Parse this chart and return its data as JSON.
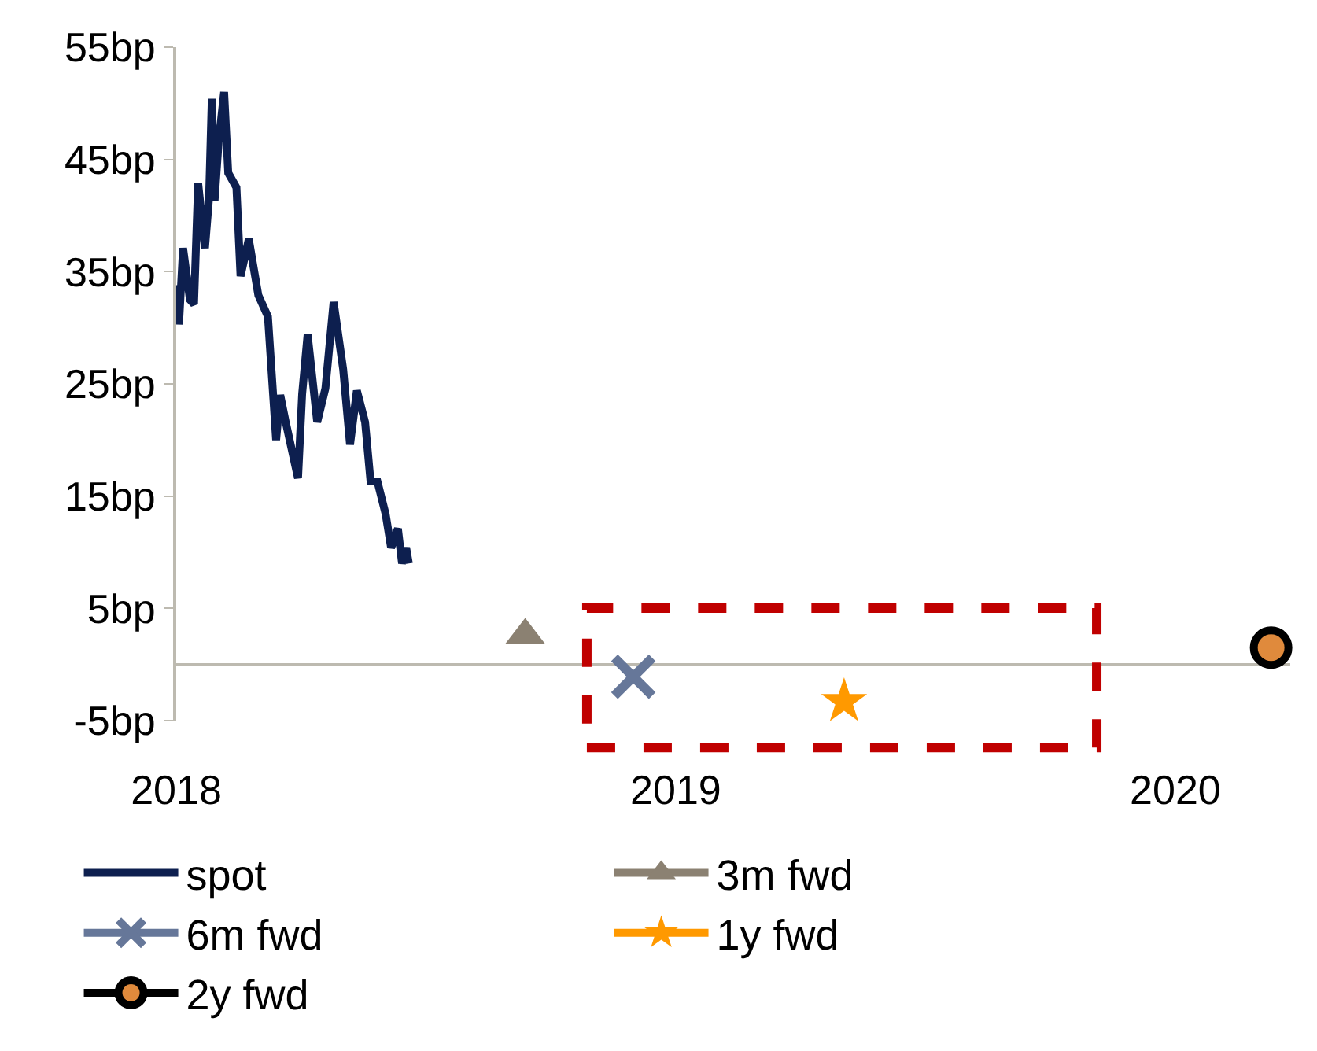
{
  "chart_data": {
    "type": "line",
    "xlim": [
      "2018-01-01",
      "2020-03-25"
    ],
    "xticks": [
      "2018",
      "2019",
      "2020"
    ],
    "ylim": [
      -5,
      55
    ],
    "yticks": [
      {
        "value": -5,
        "label": "-5bp"
      },
      {
        "value": 5,
        "label": "5bp"
      },
      {
        "value": 15,
        "label": "15bp"
      },
      {
        "value": 25,
        "label": "25bp"
      },
      {
        "value": 35,
        "label": "35bp"
      },
      {
        "value": 45,
        "label": "45bp"
      },
      {
        "value": 55,
        "label": "55bp"
      }
    ],
    "grid": false,
    "legend": "bottom",
    "series": [
      {
        "name": "spot",
        "color": "#0d1f4f",
        "marker": "none",
        "x": [
          "2018-01-02",
          "2018-01-03",
          "2018-01-06",
          "2018-01-11",
          "2018-01-14",
          "2018-01-17",
          "2018-01-22",
          "2018-01-25",
          "2018-01-27",
          "2018-01-29",
          "2018-02-01",
          "2018-02-05",
          "2018-02-08",
          "2018-02-14",
          "2018-02-17",
          "2018-02-23",
          "2018-03-02",
          "2018-03-09",
          "2018-03-15",
          "2018-03-18",
          "2018-03-22",
          "2018-03-31",
          "2018-04-03",
          "2018-04-07",
          "2018-04-14",
          "2018-04-20",
          "2018-04-26",
          "2018-05-03",
          "2018-05-08",
          "2018-05-13",
          "2018-05-19",
          "2018-05-23",
          "2018-05-28",
          "2018-06-03",
          "2018-06-07",
          "2018-06-12",
          "2018-06-15",
          "2018-06-18",
          "2018-06-20"
        ],
        "values": [
          33.8,
          30.3,
          37.1,
          32.5,
          32.1,
          42.9,
          37.1,
          41.6,
          50.4,
          41.3,
          46.6,
          51,
          43.8,
          42.5,
          34.6,
          37.9,
          32.9,
          31,
          20,
          24,
          21.6,
          16.6,
          24.1,
          29.4,
          21.6,
          24.6,
          32.3,
          26.3,
          19.6,
          24.4,
          21.6,
          16.3,
          16.3,
          13.4,
          10.4,
          12.1,
          9,
          10.4,
          9
        ]
      },
      {
        "name": "3m fwd",
        "color": "#8b8172",
        "marker": "triangle",
        "x": [
          "2018-09-13"
        ],
        "values": [
          2.6
        ]
      },
      {
        "name": "6m fwd",
        "color": "#667799",
        "marker": "cross",
        "x": [
          "2018-12-01"
        ],
        "values": [
          -1.1
        ]
      },
      {
        "name": "1y fwd",
        "color": "#ff9900",
        "marker": "star",
        "x": [
          "2019-05-04"
        ],
        "values": [
          -3.3
        ]
      },
      {
        "name": "2y fwd",
        "color": "#e08a3c",
        "marker": "circle",
        "x": [
          "2020-03-11"
        ],
        "values": [
          1.5
        ]
      }
    ]
  }
}
